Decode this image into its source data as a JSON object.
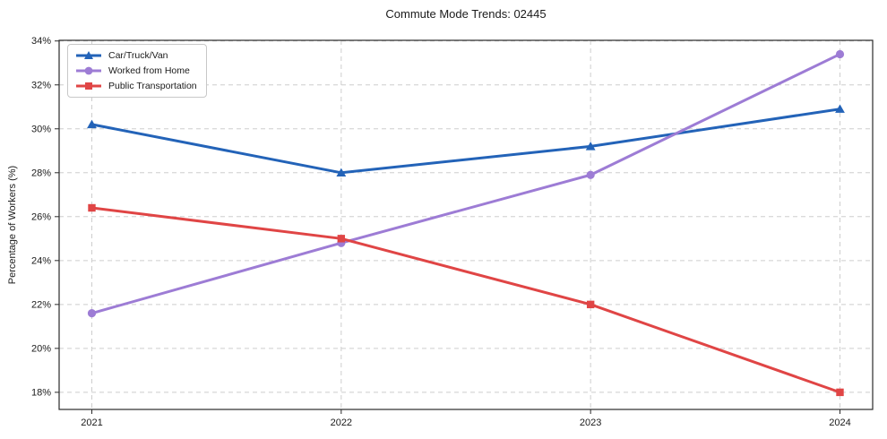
{
  "title": "Commute Mode Trends: 02445",
  "chart_data": {
    "type": "line",
    "title": "Commute Mode Trends: 02445",
    "xlabel": "",
    "ylabel": "Percentage of Workers (%)",
    "x": [
      2021,
      2022,
      2023,
      2024
    ],
    "xtick_labels": [
      "2021",
      "2022",
      "2023",
      "2024"
    ],
    "yticks": [
      18,
      20,
      22,
      24,
      26,
      28,
      30,
      32,
      34
    ],
    "ytick_labels": [
      "18%",
      "20%",
      "22%",
      "24%",
      "26%",
      "28%",
      "30%",
      "32%",
      "34%"
    ],
    "ylim": [
      17.22,
      34.03
    ],
    "grid": true,
    "legend_position": "upper-left",
    "series": [
      {
        "name": "Car/Truck/Van",
        "marker": "triangle",
        "color": "#2363b8",
        "values": [
          30.2,
          28.0,
          29.2,
          30.9
        ]
      },
      {
        "name": "Worked from Home",
        "marker": "circle",
        "color": "#9d7cd5",
        "values": [
          21.6,
          24.8,
          27.9,
          33.4
        ]
      },
      {
        "name": "Public Transportation",
        "marker": "square",
        "color": "#e04545",
        "values": [
          26.4,
          25.0,
          22.0,
          18.0
        ]
      }
    ]
  },
  "colors": {
    "background": "#ffffff",
    "grid": "#cdcdcd",
    "spine": "#2a2a2a",
    "text": "#1a1a1a",
    "legend_border": "#c8c8c8"
  }
}
